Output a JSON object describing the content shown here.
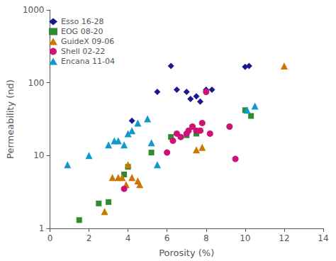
{
  "chart_data": {
    "type": "scatter",
    "xlabel": "Porosity (%)",
    "ylabel": "Permeability (nd)",
    "xlim": [
      0,
      14
    ],
    "ylim": [
      1,
      1000
    ],
    "xticks": [
      0,
      2,
      4,
      6,
      8,
      10,
      12,
      14
    ],
    "yticks": [
      1,
      10,
      100,
      1000
    ],
    "log": "y",
    "grid": false,
    "legend": "upper left",
    "series": [
      {
        "name": "Esso 16-28",
        "color": "#1a1a8c",
        "marker": "diamond",
        "x": [
          4.2,
          5.5,
          6.2,
          6.5,
          7.0,
          7.2,
          7.5,
          7.7,
          8.0,
          8.3,
          10.2,
          10.0
        ],
        "values": [
          30,
          75,
          170,
          80,
          75,
          60,
          65,
          55,
          80,
          80,
          170,
          165
        ]
      },
      {
        "name": "EOG 08-20",
        "color": "#2e8b2e",
        "marker": "square",
        "x": [
          1.5,
          2.5,
          3.0,
          3.8,
          4.0,
          5.2,
          6.2,
          7.0,
          7.5,
          10.0,
          10.3
        ],
        "values": [
          1.3,
          2.2,
          2.3,
          5.5,
          7.0,
          11.0,
          18,
          19,
          20,
          42,
          35
        ]
      },
      {
        "name": "GuideX 09-06",
        "color": "#cc7700",
        "marker": "triangle",
        "x": [
          2.8,
          3.2,
          3.5,
          3.7,
          3.9,
          4.0,
          4.2,
          4.5,
          4.6,
          7.5,
          7.8,
          12.0
        ],
        "values": [
          1.7,
          5.0,
          5.0,
          5.0,
          4.0,
          7.5,
          5.0,
          4.5,
          4.0,
          12,
          13,
          170
        ]
      },
      {
        "name": "Shell 02-22",
        "color": "#cc1177",
        "marker": "circle",
        "x": [
          3.8,
          6.0,
          6.3,
          6.5,
          6.7,
          7.0,
          7.1,
          7.3,
          7.5,
          7.7,
          7.8,
          8.0,
          8.2,
          9.2,
          9.5
        ],
        "values": [
          3.5,
          11,
          16,
          20,
          18,
          20,
          22,
          25,
          22,
          22,
          28,
          75,
          20,
          25,
          9
        ]
      },
      {
        "name": "Encana 11-04",
        "color": "#1199cc",
        "marker": "triangle",
        "x": [
          0.9,
          2.0,
          3.0,
          3.3,
          3.5,
          3.8,
          4.0,
          4.2,
          4.5,
          5.0,
          5.2,
          5.5,
          10.1,
          10.5
        ],
        "values": [
          7.5,
          10,
          14,
          16,
          16,
          14,
          20,
          22,
          28,
          32,
          15,
          7.5,
          42,
          48
        ]
      }
    ]
  }
}
